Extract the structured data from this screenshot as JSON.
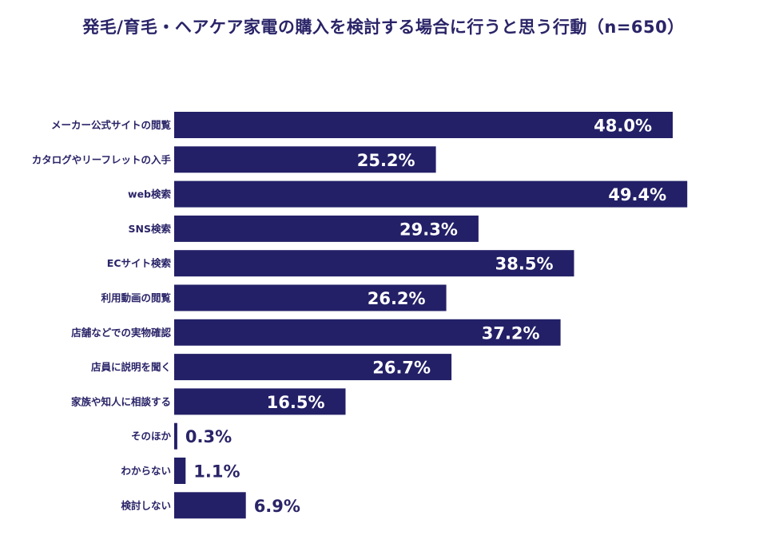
{
  "colors": {
    "bar": "#232067",
    "text": "#2a2468",
    "label_inside": "#ffffff"
  },
  "chart_data": {
    "type": "bar",
    "orientation": "horizontal",
    "title": "発毛/育毛・ヘアケア家電の購入を検討する場合に行うと思う行動（n=650）",
    "xlabel": "",
    "ylabel": "",
    "unit": "%",
    "xlim": [
      0,
      50
    ],
    "grid": false,
    "categories": [
      "メーカー公式サイトの閲覧",
      "カタログやリーフレットの入手",
      "web検索",
      "SNS検索",
      "ECサイト検索",
      "利用動画の閲覧",
      "店舗などでの実物確認",
      "店員に説明を聞く",
      "家族や知人に相談する",
      "そのほか",
      "わからない",
      "検討しない"
    ],
    "values": [
      48.0,
      25.2,
      49.4,
      29.3,
      38.5,
      26.2,
      37.2,
      26.7,
      16.5,
      0.3,
      1.1,
      6.9
    ],
    "value_labels": [
      "48.0%",
      "25.2%",
      "49.4%",
      "29.3%",
      "38.5%",
      "26.2%",
      "37.2%",
      "26.7%",
      "16.5%",
      "0.3%",
      "1.1%",
      "6.9%"
    ]
  }
}
